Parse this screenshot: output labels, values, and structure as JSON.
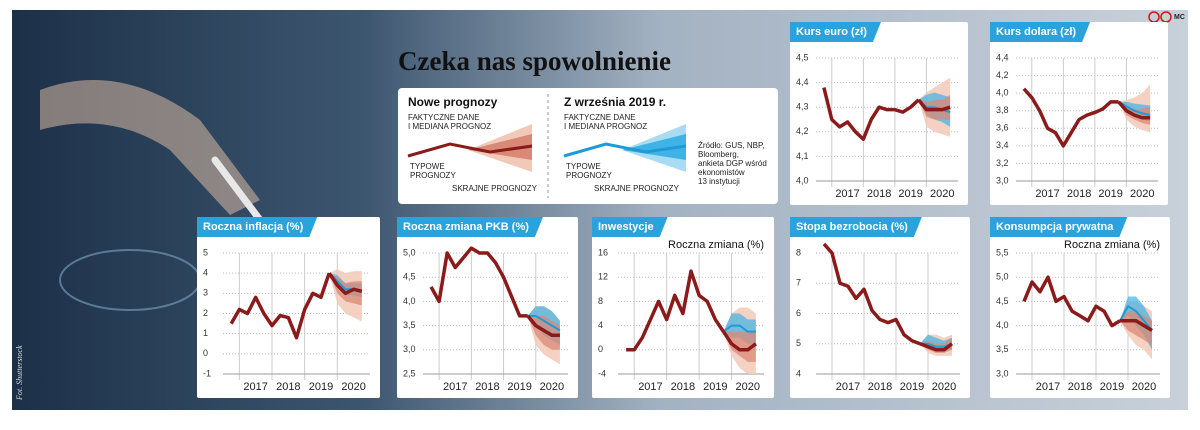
{
  "header": {
    "title": "Czeka nas spowolnienie",
    "logo": "MC"
  },
  "legend": {
    "new": {
      "title": "Nowe prognozy",
      "actual_label": [
        "FAKTYCZNE DANE",
        "I MEDIANA PROGNOZ"
      ],
      "typical_label": [
        "TYPOWE",
        "PROGNOZY"
      ],
      "extreme_label": "SKRAJNE PROGNOZY"
    },
    "old": {
      "title": "Z września 2019 r.",
      "actual_label": [
        "FAKTYCZNE DANE",
        "I MEDIANA PROGNOZ"
      ],
      "typical_label": [
        "TYPOWE",
        "PROGNOZY"
      ],
      "extreme_label": "SKRAJNE PROGNOZY"
    }
  },
  "source": [
    "Źródło: GUS, NBP,",
    "Bloomberg,",
    "ankieta DGP wśród",
    "ekonomistów",
    "13 instytucji"
  ],
  "credit": "Fot. Shutterstock",
  "colors": {
    "actual": "#8b1a1a",
    "extreme": "#f2c9b9",
    "typical": "#d98a76",
    "previous_typical": "#3fb2e6",
    "previous_median": "#1e9bd7"
  },
  "chart_data": [
    {
      "type": "line",
      "title": "Kurs euro (zł)",
      "xlim": [
        2016.5,
        2021.0
      ],
      "xticks": [
        2017,
        2018,
        2019,
        2020
      ],
      "ylim": [
        4.0,
        4.5
      ],
      "yticks": [
        {
          "value": 4.0,
          "label": "4,0"
        },
        {
          "value": 4.1,
          "label": "4,1"
        },
        {
          "value": 4.2,
          "label": "4,2"
        },
        {
          "value": 4.3,
          "label": "4,3"
        },
        {
          "value": 4.4,
          "label": "4,4"
        },
        {
          "value": 4.5,
          "label": "4,5"
        }
      ],
      "x": [
        2016.75,
        2017.0,
        2017.25,
        2017.5,
        2017.75,
        2018.0,
        2018.25,
        2018.5,
        2018.75,
        2019.0,
        2019.25,
        2019.5,
        2019.75
      ],
      "values": [
        4.38,
        4.25,
        4.22,
        4.24,
        4.2,
        4.17,
        4.25,
        4.3,
        4.29,
        4.29,
        4.28,
        4.3,
        4.33
      ],
      "forecast_x": [
        2019.75,
        2020.0,
        2020.25,
        2020.5,
        2020.75
      ],
      "forecast": {
        "median": [
          4.33,
          4.29,
          4.29,
          4.29,
          4.3
        ],
        "typical_low": [
          4.33,
          4.26,
          4.25,
          4.25,
          4.25
        ],
        "typical_high": [
          4.33,
          4.32,
          4.33,
          4.33,
          4.35
        ],
        "extreme_low": [
          4.33,
          4.22,
          4.2,
          4.19,
          4.18
        ],
        "extreme_high": [
          4.33,
          4.36,
          4.38,
          4.4,
          4.42
        ]
      },
      "previous_forecast": {
        "median": [
          4.33,
          4.3,
          4.3,
          4.29,
          4.28
        ],
        "typical_low": [
          4.33,
          4.27,
          4.25,
          4.24,
          4.22
        ],
        "typical_high": [
          4.33,
          4.35,
          4.36,
          4.35,
          4.34
        ]
      }
    },
    {
      "type": "line",
      "title": "Kurs dolara (zł)",
      "xlim": [
        2016.5,
        2021.0
      ],
      "xticks": [
        2017,
        2018,
        2019,
        2020
      ],
      "ylim": [
        3.0,
        4.4
      ],
      "yticks": [
        {
          "value": 3.0,
          "label": "3,0"
        },
        {
          "value": 3.2,
          "label": "3,2"
        },
        {
          "value": 3.4,
          "label": "3,4"
        },
        {
          "value": 3.6,
          "label": "3,6"
        },
        {
          "value": 3.8,
          "label": "3,8"
        },
        {
          "value": 4.0,
          "label": "4,0"
        },
        {
          "value": 4.2,
          "label": "4,2"
        },
        {
          "value": 4.4,
          "label": "4,4"
        }
      ],
      "x": [
        2016.75,
        2017.0,
        2017.25,
        2017.5,
        2017.75,
        2018.0,
        2018.25,
        2018.5,
        2018.75,
        2019.0,
        2019.25,
        2019.5,
        2019.75
      ],
      "values": [
        4.05,
        3.95,
        3.8,
        3.6,
        3.55,
        3.4,
        3.55,
        3.7,
        3.75,
        3.78,
        3.82,
        3.9,
        3.9
      ],
      "forecast_x": [
        2019.75,
        2020.0,
        2020.25,
        2020.5,
        2020.75
      ],
      "forecast": {
        "median": [
          3.9,
          3.8,
          3.75,
          3.72,
          3.72
        ],
        "typical_low": [
          3.9,
          3.75,
          3.7,
          3.66,
          3.64
        ],
        "typical_high": [
          3.9,
          3.85,
          3.82,
          3.82,
          3.85
        ],
        "extreme_low": [
          3.9,
          3.7,
          3.62,
          3.58,
          3.55
        ],
        "extreme_high": [
          3.9,
          3.92,
          3.95,
          4.0,
          4.1
        ]
      },
      "previous_forecast": {
        "median": [
          3.9,
          3.85,
          3.8,
          3.77,
          3.75
        ],
        "typical_low": [
          3.9,
          3.82,
          3.75,
          3.7,
          3.68
        ],
        "typical_high": [
          3.9,
          3.9,
          3.88,
          3.87,
          3.86
        ]
      }
    },
    {
      "type": "line",
      "title": "Roczna inflacja (%)",
      "xlim": [
        2016.5,
        2021.0
      ],
      "xticks": [
        2017,
        2018,
        2019,
        2020
      ],
      "ylim": [
        -1,
        5
      ],
      "yticks": [
        -1,
        0,
        1,
        2,
        3,
        4,
        5
      ],
      "x": [
        2016.75,
        2017.0,
        2017.25,
        2017.5,
        2017.75,
        2018.0,
        2018.25,
        2018.5,
        2018.75,
        2019.0,
        2019.25,
        2019.5,
        2019.75
      ],
      "values": [
        1.5,
        2.2,
        2.0,
        2.8,
        2.0,
        1.4,
        1.9,
        1.8,
        0.8,
        2.2,
        3.0,
        2.8,
        4.0
      ],
      "forecast_x": [
        2019.75,
        2020.0,
        2020.25,
        2020.5,
        2020.75
      ],
      "forecast": {
        "median": [
          4.0,
          3.4,
          3.0,
          3.2,
          3.1
        ],
        "typical_low": [
          4.0,
          3.0,
          2.6,
          2.5,
          2.4
        ],
        "typical_high": [
          4.0,
          3.8,
          3.5,
          3.6,
          3.6
        ],
        "extreme_low": [
          4.0,
          2.5,
          2.0,
          1.8,
          1.6
        ],
        "extreme_high": [
          4.0,
          4.2,
          4.0,
          4.1,
          4.1
        ]
      },
      "previous_forecast": {
        "median": [
          4.0,
          3.6,
          3.2,
          3.2,
          3.1
        ],
        "typical_low": [
          4.0,
          3.3,
          2.9,
          2.9,
          2.8
        ],
        "typical_high": [
          4.0,
          3.9,
          3.5,
          3.5,
          3.5
        ]
      }
    },
    {
      "type": "line",
      "title": "Roczna zmiana PKB (%)",
      "xlim": [
        2016.5,
        2021.0
      ],
      "xticks": [
        2017,
        2018,
        2019,
        2020
      ],
      "ylim": [
        2.5,
        5.0
      ],
      "yticks": [
        {
          "value": 2.5,
          "label": "2,5"
        },
        {
          "value": 3.0,
          "label": "3,0"
        },
        {
          "value": 3.5,
          "label": "3,5"
        },
        {
          "value": 4.0,
          "label": "4,0"
        },
        {
          "value": 4.5,
          "label": "4,5"
        },
        {
          "value": 5.0,
          "label": "5,0"
        }
      ],
      "x": [
        2016.75,
        2017.0,
        2017.25,
        2017.5,
        2017.75,
        2018.0,
        2018.25,
        2018.5,
        2018.75,
        2019.0,
        2019.25,
        2019.5,
        2019.75
      ],
      "values": [
        4.3,
        4.0,
        5.0,
        4.7,
        4.9,
        5.1,
        5.0,
        5.0,
        4.8,
        4.5,
        4.1,
        3.7,
        3.7
      ],
      "forecast_x": [
        2019.75,
        2020.0,
        2020.25,
        2020.5,
        2020.75
      ],
      "forecast": {
        "median": [
          3.7,
          3.5,
          3.4,
          3.3,
          3.3
        ],
        "typical_low": [
          3.7,
          3.3,
          3.1,
          3.0,
          3.0
        ],
        "typical_high": [
          3.7,
          3.7,
          3.7,
          3.6,
          3.5
        ],
        "extreme_low": [
          3.7,
          3.1,
          2.9,
          2.8,
          2.7
        ],
        "extreme_high": [
          3.7,
          3.9,
          3.9,
          3.8,
          3.6
        ]
      },
      "previous_forecast": {
        "median": [
          3.7,
          3.7,
          3.6,
          3.5,
          3.4
        ],
        "typical_low": [
          3.7,
          3.5,
          3.3,
          3.2,
          3.1
        ],
        "typical_high": [
          3.7,
          3.9,
          3.9,
          3.8,
          3.6
        ]
      }
    },
    {
      "type": "line",
      "title": "Inwestycje",
      "subtitle": "Roczna zmiana (%)",
      "xlim": [
        2016.5,
        2021.0
      ],
      "xticks": [
        2017,
        2018,
        2019,
        2020
      ],
      "ylim": [
        -4,
        16
      ],
      "yticks": [
        -4,
        0,
        4,
        8,
        12,
        16
      ],
      "x": [
        2016.75,
        2017.0,
        2017.25,
        2017.5,
        2017.75,
        2018.0,
        2018.25,
        2018.5,
        2018.75,
        2019.0,
        2019.25,
        2019.5,
        2019.75
      ],
      "values": [
        0,
        0,
        2,
        5,
        8,
        5,
        9,
        6,
        13,
        9,
        8,
        5,
        3
      ],
      "forecast_x": [
        2019.75,
        2020.0,
        2020.25,
        2020.5,
        2020.75
      ],
      "forecast": {
        "median": [
          3,
          1,
          0,
          0,
          1
        ],
        "typical_low": [
          3,
          0,
          -1,
          -2,
          -2
        ],
        "typical_high": [
          3,
          3,
          3,
          3,
          3
        ],
        "extreme_low": [
          3,
          -1,
          -3,
          -4,
          -4
        ],
        "extreme_high": [
          3,
          6,
          7,
          7,
          6
        ]
      },
      "previous_forecast": {
        "median": [
          3,
          4,
          4,
          3,
          3
        ],
        "typical_low": [
          3,
          2,
          2,
          1,
          1
        ],
        "typical_high": [
          3,
          6,
          6,
          5,
          5
        ]
      }
    },
    {
      "type": "line",
      "title": "Stopa bezrobocia (%)",
      "xlim": [
        2016.5,
        2021.0
      ],
      "xticks": [
        2017,
        2018,
        2019,
        2020
      ],
      "ylim": [
        4,
        8
      ],
      "yticks": [
        4,
        5,
        6,
        7,
        8
      ],
      "x": [
        2016.75,
        2017.0,
        2017.25,
        2017.5,
        2017.75,
        2018.0,
        2018.25,
        2018.5,
        2018.75,
        2019.0,
        2019.25,
        2019.5,
        2019.75
      ],
      "values": [
        8.3,
        8.0,
        7.0,
        6.9,
        6.5,
        6.8,
        6.1,
        5.8,
        5.7,
        5.8,
        5.3,
        5.1,
        5.0
      ],
      "forecast_x": [
        2019.75,
        2020.0,
        2020.25,
        2020.5,
        2020.75
      ],
      "forecast": {
        "median": [
          5.0,
          4.9,
          4.8,
          4.8,
          5.0
        ],
        "typical_low": [
          5.0,
          4.8,
          4.7,
          4.7,
          4.8
        ],
        "typical_high": [
          5.0,
          5.1,
          5.0,
          5.0,
          5.2
        ],
        "extreme_low": [
          5.0,
          4.7,
          4.6,
          4.6,
          4.6
        ],
        "extreme_high": [
          5.0,
          5.3,
          5.3,
          5.2,
          5.3
        ]
      },
      "previous_forecast": {
        "median": [
          5.0,
          5.0,
          4.9,
          4.9,
          5.0
        ],
        "typical_low": [
          5.0,
          4.9,
          4.8,
          4.8,
          4.8
        ],
        "typical_high": [
          5.0,
          5.3,
          5.2,
          5.1,
          5.2
        ]
      }
    },
    {
      "type": "line",
      "title": "Konsumpcja prywatna",
      "subtitle": "Roczna zmiana (%)",
      "xlim": [
        2016.5,
        2021.0
      ],
      "xticks": [
        2017,
        2018,
        2019,
        2020
      ],
      "ylim": [
        3.0,
        5.5
      ],
      "yticks": [
        {
          "value": 3.0,
          "label": "3,0"
        },
        {
          "value": 3.5,
          "label": "3,5"
        },
        {
          "value": 4.0,
          "label": "4,0"
        },
        {
          "value": 4.5,
          "label": "4,5"
        },
        {
          "value": 5.0,
          "label": "5,0"
        },
        {
          "value": 5.5,
          "label": "5,5"
        }
      ],
      "x": [
        2016.75,
        2017.0,
        2017.25,
        2017.5,
        2017.75,
        2018.0,
        2018.25,
        2018.5,
        2018.75,
        2019.0,
        2019.25,
        2019.5,
        2019.75
      ],
      "values": [
        4.5,
        4.9,
        4.7,
        5.0,
        4.5,
        4.6,
        4.3,
        4.2,
        4.1,
        4.4,
        4.3,
        4.0,
        4.1
      ],
      "forecast_x": [
        2019.75,
        2020.0,
        2020.25,
        2020.5,
        2020.75
      ],
      "forecast": {
        "median": [
          4.1,
          4.1,
          4.1,
          4.0,
          3.9
        ],
        "typical_low": [
          4.1,
          3.9,
          3.8,
          3.7,
          3.6
        ],
        "typical_high": [
          4.1,
          4.3,
          4.3,
          4.2,
          4.1
        ],
        "extreme_low": [
          4.1,
          3.8,
          3.6,
          3.5,
          3.3
        ],
        "extreme_high": [
          4.1,
          4.5,
          4.5,
          4.4,
          4.3
        ]
      },
      "previous_forecast": {
        "median": [
          4.1,
          4.4,
          4.3,
          4.1,
          3.9
        ],
        "typical_low": [
          4.1,
          4.2,
          4.0,
          3.8,
          3.5
        ],
        "typical_high": [
          4.1,
          4.6,
          4.6,
          4.4,
          4.1
        ]
      }
    }
  ]
}
